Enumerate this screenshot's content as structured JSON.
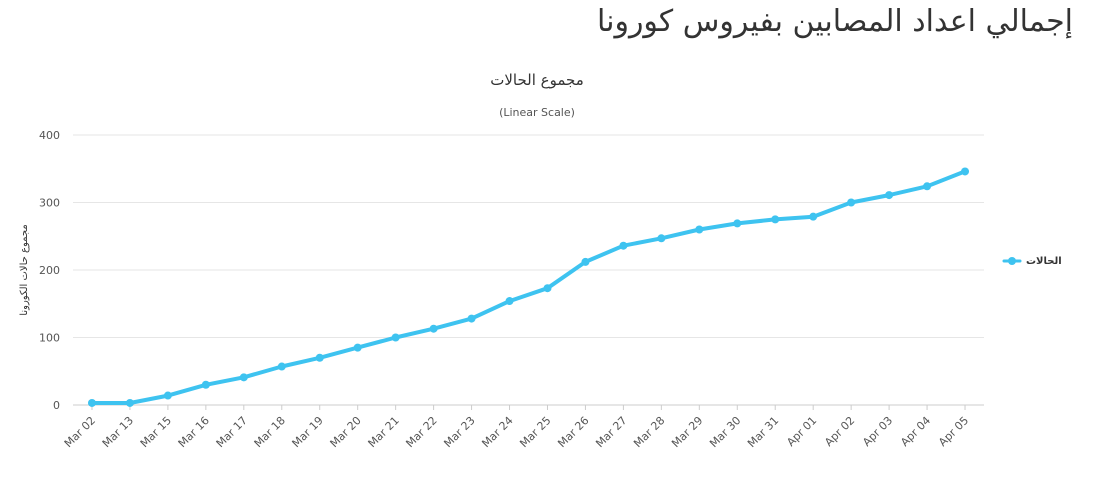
{
  "page": {
    "title": "إجمالي اعداد المصابين بفيروس كورونا"
  },
  "colors": {
    "series": "#3ec3f0",
    "grid": "#e6e6e6",
    "axis": "#cccccc"
  },
  "chart_data": {
    "type": "line",
    "title": "مجموع الحالات",
    "subtitle": "(Linear Scale)",
    "ylabel": "مجموع حالات الكورونا",
    "xlabel": "",
    "ylim": [
      0,
      400
    ],
    "yticks": [
      0,
      100,
      200,
      300,
      400
    ],
    "grid": true,
    "legend_position": "right",
    "categories": [
      "Mar 02",
      "Mar 13",
      "Mar 15",
      "Mar 16",
      "Mar 17",
      "Mar 18",
      "Mar 19",
      "Mar 20",
      "Mar 21",
      "Mar 22",
      "Mar 23",
      "Mar 24",
      "Mar 25",
      "Mar 26",
      "Mar 27",
      "Mar 28",
      "Mar 29",
      "Mar 30",
      "Mar 31",
      "Apr 01",
      "Apr 02",
      "Apr 03",
      "Apr 04",
      "Apr 05"
    ],
    "series": [
      {
        "name": "الحالات",
        "values": [
          3,
          3,
          14,
          30,
          41,
          57,
          70,
          85,
          100,
          113,
          128,
          154,
          173,
          212,
          236,
          247,
          260,
          269,
          275,
          279,
          300,
          311,
          324,
          346
        ]
      }
    ]
  }
}
